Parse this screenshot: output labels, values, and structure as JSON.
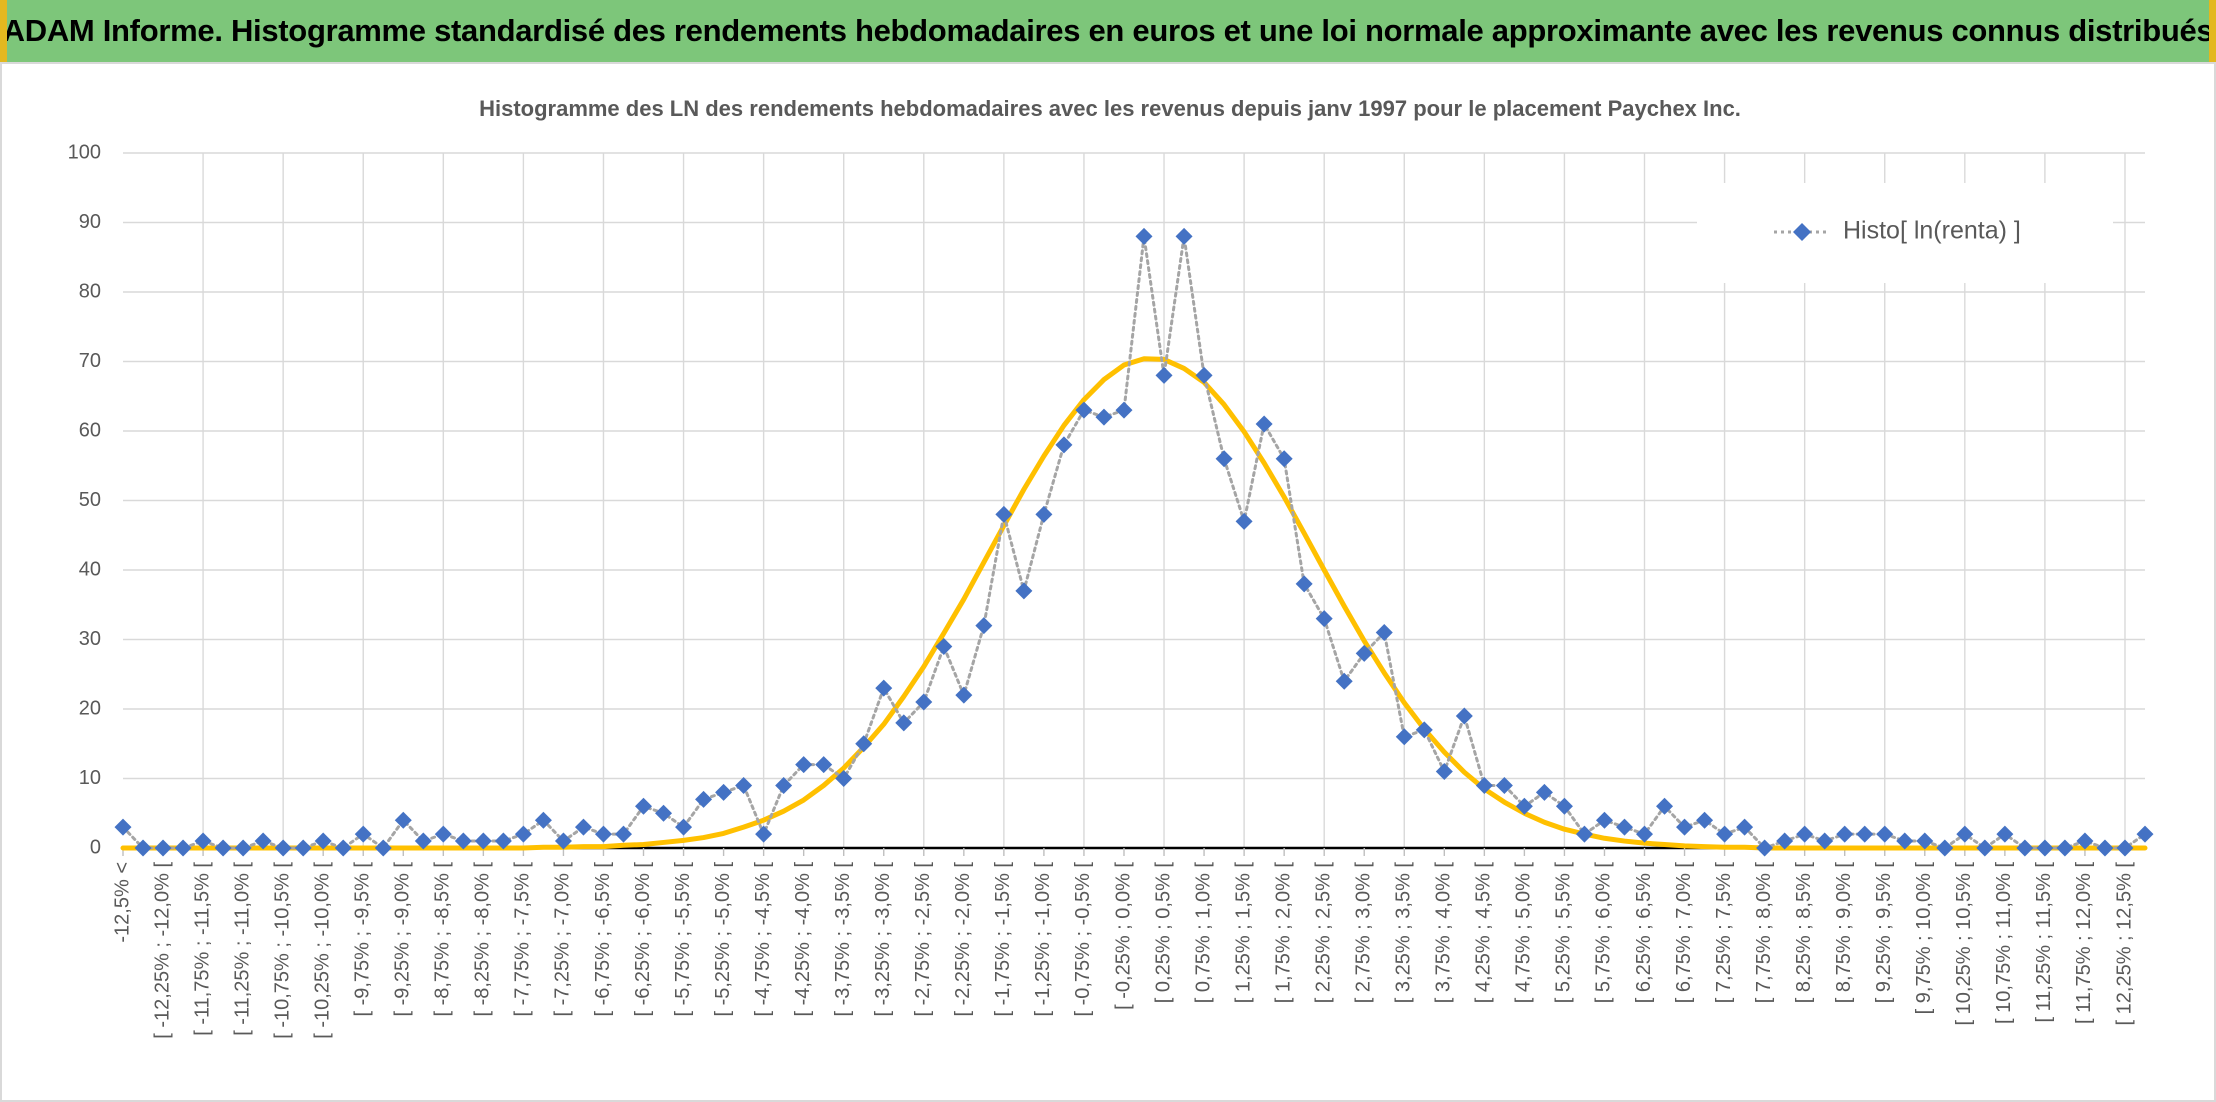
{
  "header": {
    "title": "ADAM Informe. Histogramme standardisé des rendements hebdomadaires en euros et une loi normale approximante avec les revenus connus distribués"
  },
  "chart_data": {
    "type": "line",
    "title": "Histogramme des LN des rendements hebdomadaires avec les revenus depuis janv 1997 pour le placement Paychex Inc.",
    "categories": [
      "-12,5% <",
      null,
      "[ -12,25% ; -12,0% [",
      null,
      "[ -11,75% ; -11,5% [",
      null,
      "[ -11,25% ; -11,0% [",
      null,
      "[ -10,75% ; -10,5% [",
      null,
      "[ -10,25% ; -10,0% [",
      null,
      "[ -9,75% ; -9,5% [",
      null,
      "[ -9,25% ; -9,0% [",
      null,
      "[ -8,75% ; -8,5% [",
      null,
      "[ -8,25% ; -8,0% [",
      null,
      "[ -7,75% ; -7,5% [",
      null,
      "[ -7,25% ; -7,0% [",
      null,
      "[ -6,75% ; -6,5% [",
      null,
      "[ -6,25% ; -6,0% [",
      null,
      "[ -5,75% ; -5,5% [",
      null,
      "[ -5,25% ; -5,0% [",
      null,
      "[ -4,75% ; -4,5% [",
      null,
      "[ -4,25% ; -4,0% [",
      null,
      "[ -3,75% ; -3,5% [",
      null,
      "[ -3,25% ; -3,0% [",
      null,
      "[ -2,75% ; -2,5% [",
      null,
      "[ -2,25% ; -2,0% [",
      null,
      "[ -1,75% ; -1,5% [",
      null,
      "[ -1,25% ; -1,0% [",
      null,
      "[ -0,75% ; -0,5% [",
      null,
      "[ -0,25% ; 0,0% [",
      null,
      "[ 0,25% ; 0,5% [",
      null,
      "[ 0,75% ; 1,0% [",
      null,
      "[ 1,25% ; 1,5% [",
      null,
      "[ 1,75% ; 2,0% [",
      null,
      "[ 2,25% ; 2,5% [",
      null,
      "[ 2,75% ; 3,0% [",
      null,
      "[ 3,25% ; 3,5% [",
      null,
      "[ 3,75% ; 4,0% [",
      null,
      "[ 4,25% ; 4,5% [",
      null,
      "[ 4,75% ; 5,0% [",
      null,
      "[ 5,25% ; 5,5% [",
      null,
      "[ 5,75% ; 6,0% [",
      null,
      "[ 6,25% ; 6,5% [",
      null,
      "[ 6,75% ; 7,0% [",
      null,
      "[ 7,25% ; 7,5% [",
      null,
      "[ 7,75% ; 8,0% [",
      null,
      "[ 8,25% ; 8,5% [",
      null,
      "[ 8,75% ; 9,0% [",
      null,
      "[ 9,25% ; 9,5% [",
      null,
      "[ 9,75% ; 10,0% [",
      null,
      "[ 10,25% ; 10,5% [",
      null,
      "[ 10,75% ; 11,0% [",
      null,
      "[ 11,25% ; 11,5% [",
      null,
      "[ 11,75% ; 12,0% [",
      null,
      "[ 12,25% ; 12,5% [",
      null
    ],
    "series": [
      {
        "name": "Histo[ ln(renta) ]",
        "color": "#4472c4",
        "line_color": "#a5a5a5",
        "line_style": "dotted",
        "marker": "diamond",
        "values": [
          3,
          0,
          0,
          0,
          1,
          0,
          0,
          1,
          0,
          0,
          1,
          0,
          2,
          0,
          4,
          1,
          2,
          1,
          1,
          1,
          2,
          4,
          1,
          3,
          2,
          2,
          6,
          5,
          3,
          7,
          8,
          9,
          2,
          9,
          12,
          12,
          10,
          15,
          23,
          18,
          21,
          29,
          22,
          32,
          48,
          37,
          48,
          58,
          63,
          62,
          63,
          88,
          68,
          88,
          68,
          56,
          47,
          61,
          56,
          38,
          33,
          24,
          28,
          31,
          16,
          17,
          11,
          19,
          9,
          9,
          6,
          8,
          6,
          2,
          4,
          3,
          2,
          6,
          3,
          4,
          2,
          3,
          0,
          1,
          2,
          1,
          2,
          2,
          2,
          1,
          1,
          0,
          2,
          0,
          2,
          0,
          0,
          0,
          1,
          0,
          0,
          2
        ]
      },
      {
        "color": "#ffc000",
        "line_style": "solid",
        "marker": "none",
        "values": [
          0,
          0,
          0,
          0,
          0,
          0,
          0,
          0,
          0,
          0,
          0,
          0,
          0,
          0,
          0,
          0,
          0,
          0,
          0,
          0,
          0,
          0.1,
          0.1,
          0.2,
          0.2,
          0.4,
          0.5,
          0.8,
          1.1,
          1.5,
          2.1,
          3,
          4,
          5.3,
          6.9,
          9,
          11.5,
          14.5,
          17.8,
          21.8,
          26.1,
          30.9,
          35.8,
          41.1,
          46.4,
          51.6,
          56.4,
          60.8,
          64.5,
          67.4,
          69.5,
          70.4,
          70.3,
          69,
          67,
          63.8,
          59.9,
          55.4,
          50.5,
          45.3,
          40,
          34.8,
          29.8,
          25.2,
          20.9,
          17.1,
          13.8,
          10.9,
          8.5,
          6.6,
          5,
          3.7,
          2.7,
          2,
          1.4,
          1,
          0.7,
          0.5,
          0.3,
          0.2,
          0.1,
          0.1,
          0,
          0,
          0,
          0,
          0,
          0,
          0,
          0,
          0,
          0,
          0,
          0,
          0,
          0,
          0,
          0,
          0,
          0,
          0,
          0
        ]
      }
    ],
    "ylim": [
      0,
      100
    ],
    "yticks": [
      0,
      10,
      20,
      30,
      40,
      50,
      60,
      70,
      80,
      90,
      100
    ],
    "grid": true,
    "legend": "top-right"
  }
}
